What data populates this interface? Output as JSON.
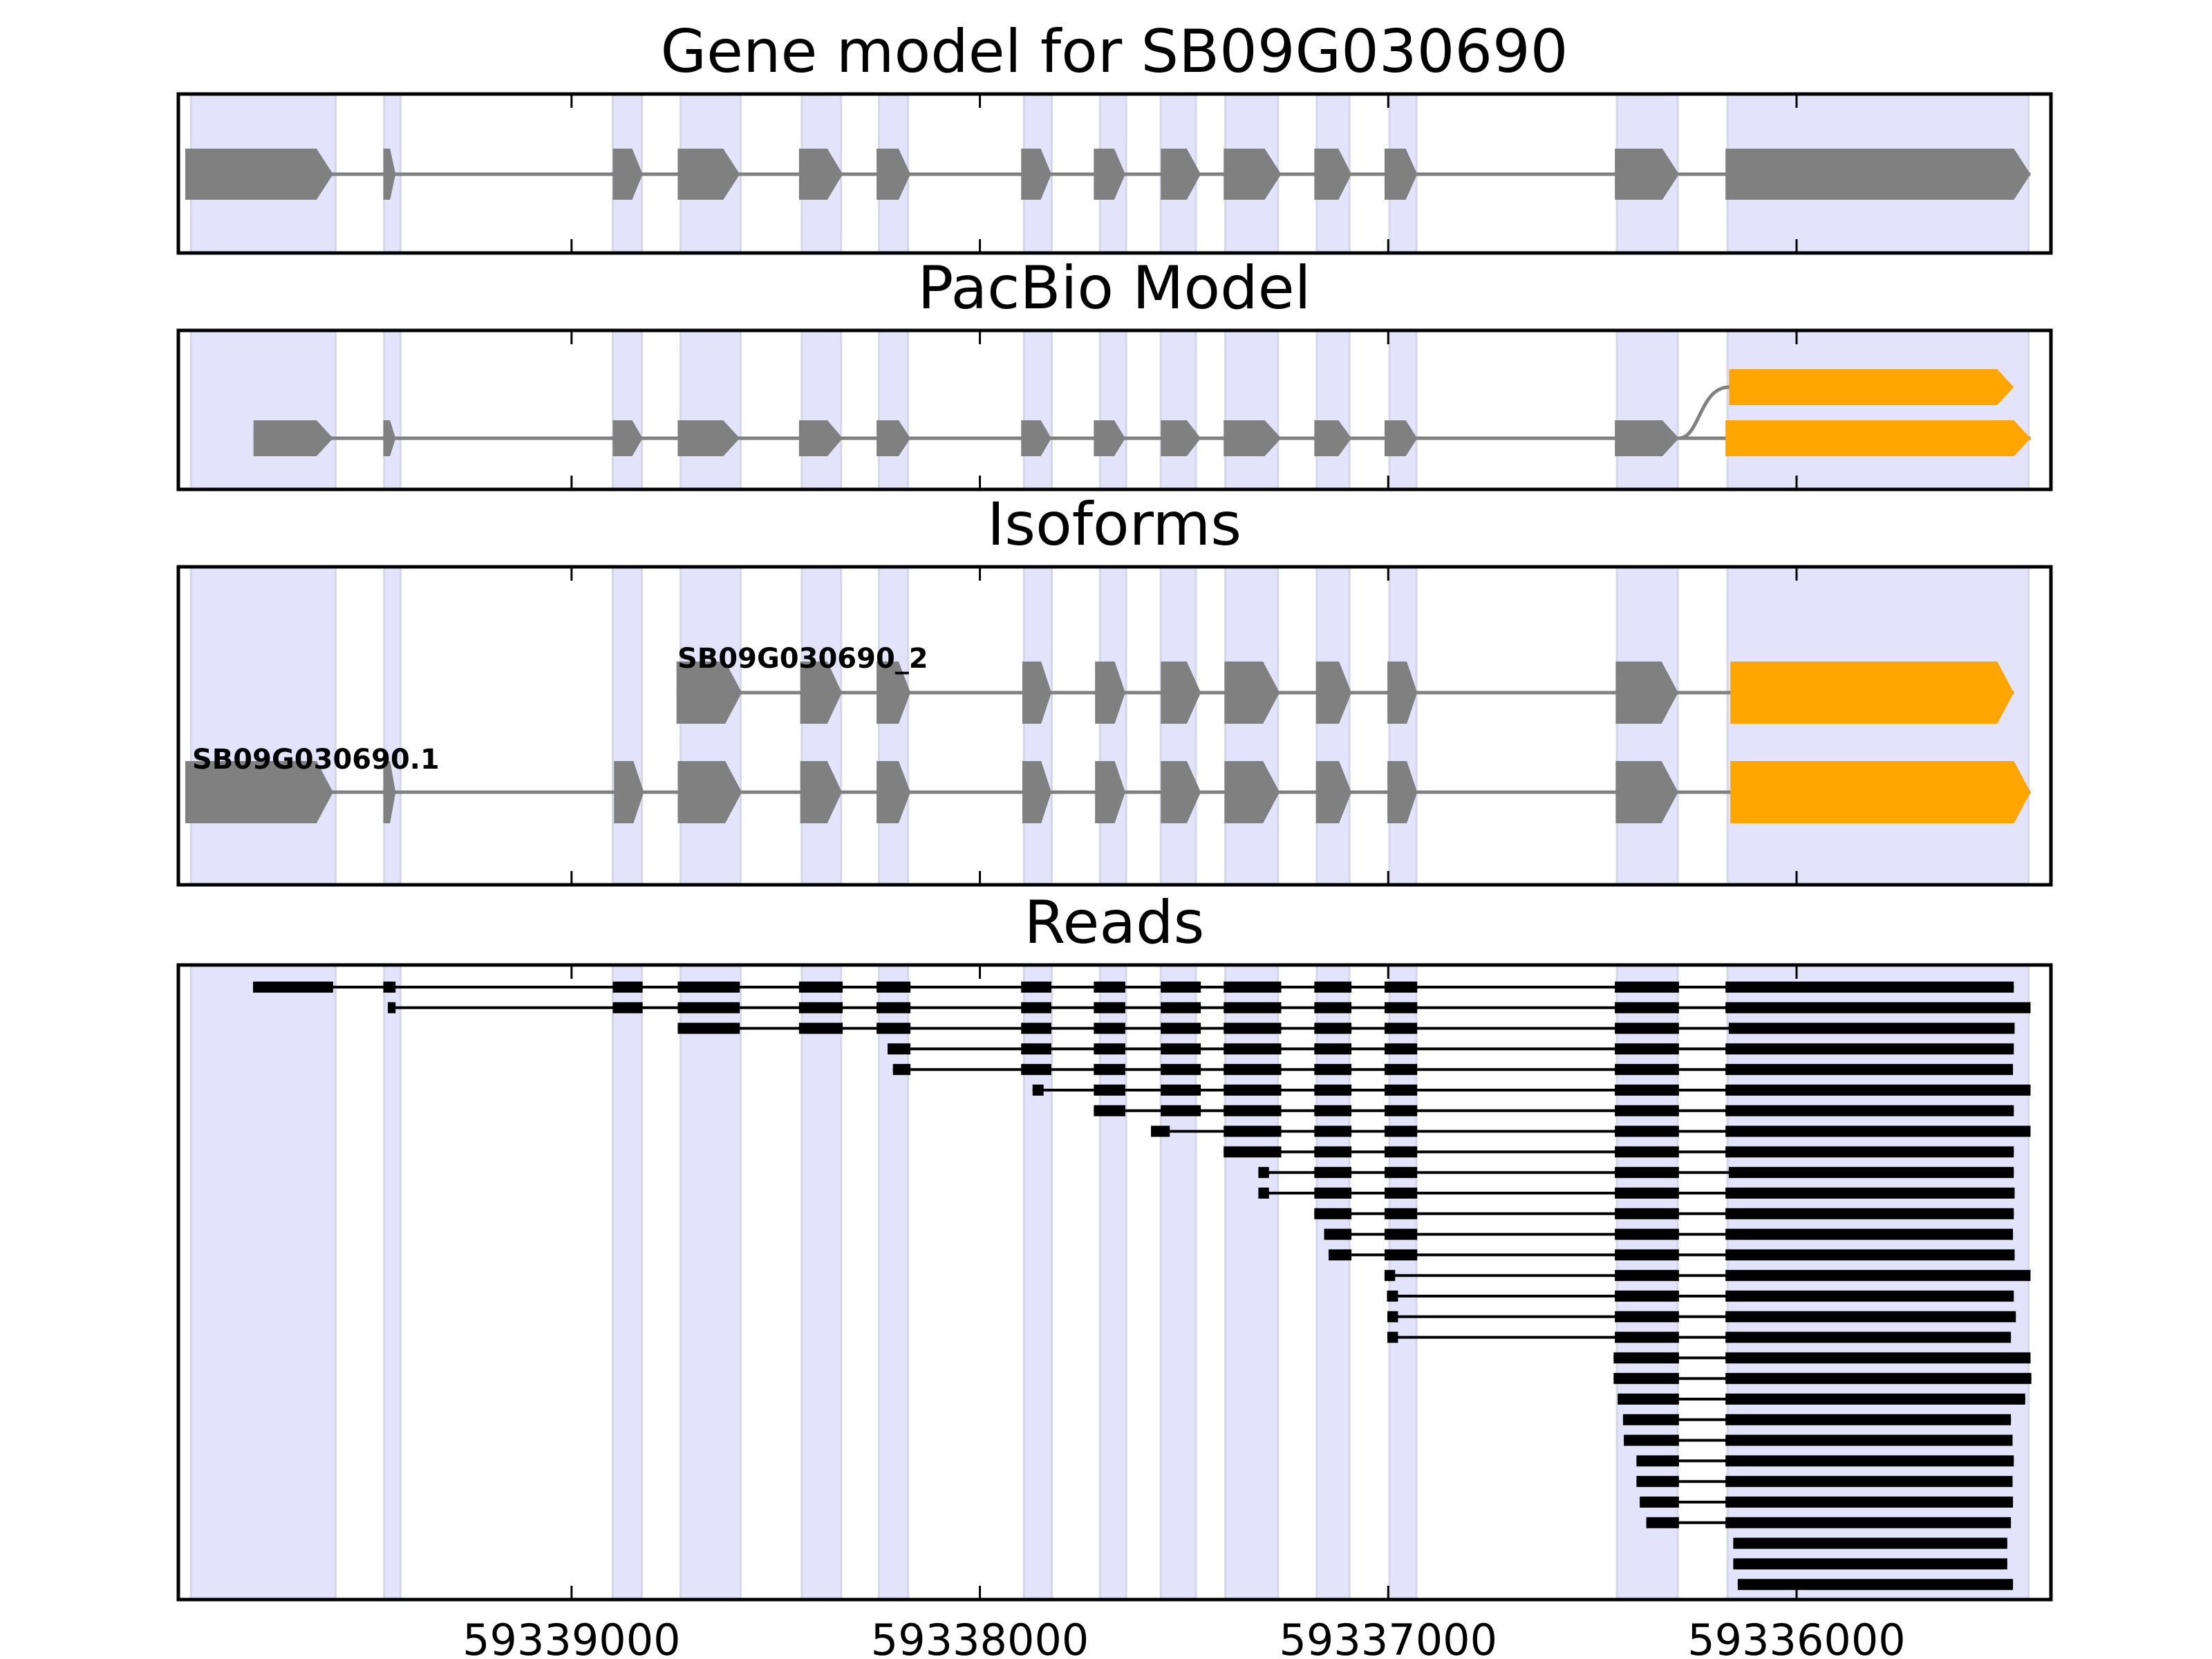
{
  "chart_data": {
    "type": "gene-track",
    "gene_id": "SB09G030690",
    "strand": "-",
    "xlim": [
      59339963,
      59335377
    ],
    "x_ticks": [
      59339000,
      59338000,
      59337000,
      59336000
    ],
    "x_tick_labels": [
      "59339000",
      "59338000",
      "59337000",
      "59336000"
    ],
    "colors": {
      "exon_band": "#e3e3fb",
      "exon_band_edge": "#d6d6ea",
      "gene_exon": "#808080",
      "utr_exon": "#ffa500",
      "intron": "#808080",
      "read": "#000000",
      "frame": "#000000"
    },
    "exon_bands": [
      [
        59339932,
        59339578
      ],
      [
        59339459,
        59339419
      ],
      [
        59338899,
        59338828
      ],
      [
        59338733,
        59338586
      ],
      [
        59338436,
        59338340
      ],
      [
        59338247,
        59338176
      ],
      [
        59337892,
        59337824
      ],
      [
        59337706,
        59337642
      ],
      [
        59337557,
        59337471
      ],
      [
        59337399,
        59337270
      ],
      [
        59337175,
        59337095
      ],
      [
        59336997,
        59336931
      ],
      [
        59336440,
        59336291
      ],
      [
        59336169,
        59335432
      ]
    ],
    "panels": [
      {
        "title": "Gene model for SB09G030690",
        "tracks": [
          {
            "label": "",
            "exons": [
              [
                59339946,
                59339584,
                "cds"
              ],
              [
                59339461,
                59339431,
                "cds"
              ],
              [
                59338899,
                59338826,
                "cds"
              ],
              [
                59338740,
                59338588,
                "cds"
              ],
              [
                59338443,
                59338336,
                "cds"
              ],
              [
                59338253,
                59338170,
                "cds"
              ],
              [
                59337899,
                59337825,
                "cds"
              ],
              [
                59337721,
                59337644,
                "cds"
              ],
              [
                59337557,
                59337459,
                "cds"
              ],
              [
                59337403,
                59337262,
                "cds"
              ],
              [
                59337181,
                59337090,
                "cds"
              ],
              [
                59337009,
                59336929,
                "cds"
              ],
              [
                59336445,
                59336288,
                "cds"
              ],
              [
                59336174,
                59335427,
                "cds"
              ]
            ]
          }
        ]
      },
      {
        "title": "PacBio Model",
        "tracks": [
          {
            "label": "",
            "exons": [
              [
                59339779,
                59339584,
                "cds"
              ],
              [
                59339461,
                59339431,
                "cds"
              ],
              [
                59338899,
                59338826,
                "cds"
              ],
              [
                59338740,
                59338588,
                "cds"
              ],
              [
                59338443,
                59338336,
                "cds"
              ],
              [
                59338253,
                59338170,
                "cds"
              ],
              [
                59337899,
                59337825,
                "cds"
              ],
              [
                59337721,
                59337644,
                "cds"
              ],
              [
                59337557,
                59337459,
                "cds"
              ],
              [
                59337403,
                59337262,
                "cds"
              ],
              [
                59337181,
                59337090,
                "cds"
              ],
              [
                59337009,
                59336929,
                "cds"
              ],
              [
                59336445,
                59336288,
                "cds"
              ],
              [
                59336174,
                59335427,
                "utr"
              ]
            ]
          },
          {
            "label": "",
            "branch_from": 59336288,
            "exons": [
              [
                59336165,
                59335468,
                "utr"
              ]
            ]
          }
        ]
      },
      {
        "title": "Isoforms",
        "tracks": [
          {
            "label": "SB09G030690_2",
            "exons": [
              [
                59338743,
                59338583,
                "cds"
              ],
              [
                59338440,
                59338338,
                "cds"
              ],
              [
                59338253,
                59338170,
                "cds"
              ],
              [
                59337896,
                59337825,
                "cds"
              ],
              [
                59337718,
                59337644,
                "cds"
              ],
              [
                59337557,
                59337459,
                "cds"
              ],
              [
                59337401,
                59337266,
                "cds"
              ],
              [
                59337177,
                59337090,
                "cds"
              ],
              [
                59337002,
                59336929,
                "cds"
              ],
              [
                59336443,
                59336290,
                "cds"
              ],
              [
                59336162,
                59335468,
                "utr"
              ]
            ]
          },
          {
            "label": "SB09G030690.1",
            "exons": [
              [
                59339946,
                59339584,
                "cds"
              ],
              [
                59339461,
                59339431,
                "cds"
              ],
              [
                59338896,
                59338823,
                "cds"
              ],
              [
                59338740,
                59338583,
                "cds"
              ],
              [
                59338440,
                59338338,
                "cds"
              ],
              [
                59338253,
                59338170,
                "cds"
              ],
              [
                59337896,
                59337825,
                "cds"
              ],
              [
                59337718,
                59337644,
                "cds"
              ],
              [
                59337557,
                59337459,
                "cds"
              ],
              [
                59337401,
                59337266,
                "cds"
              ],
              [
                59337177,
                59337090,
                "cds"
              ],
              [
                59337002,
                59336929,
                "cds"
              ],
              [
                59336443,
                59336290,
                "cds"
              ],
              [
                59336162,
                59335427,
                "utr"
              ]
            ]
          }
        ]
      }
    ],
    "reads_panel": {
      "title": "Reads",
      "reads": [
        [
          [
            59339780,
            59339584
          ],
          [
            59339461,
            59339431
          ],
          [
            59338899,
            59338826
          ],
          [
            59338740,
            59338588
          ],
          [
            59338443,
            59338336
          ],
          [
            59338253,
            59338170
          ],
          [
            59337899,
            59337825
          ],
          [
            59337721,
            59337644
          ],
          [
            59337557,
            59337459
          ],
          [
            59337403,
            59337262
          ],
          [
            59337181,
            59337090
          ],
          [
            59337009,
            59336929
          ],
          [
            59336445,
            59336288
          ],
          [
            59336174,
            59335468
          ]
        ],
        [
          [
            59339450,
            59339431
          ],
          [
            59338899,
            59338826
          ],
          [
            59338740,
            59338588
          ],
          [
            59338443,
            59338336
          ],
          [
            59338253,
            59338170
          ],
          [
            59337899,
            59337825
          ],
          [
            59337721,
            59337644
          ],
          [
            59337557,
            59337459
          ],
          [
            59337403,
            59337262
          ],
          [
            59337181,
            59337090
          ],
          [
            59337009,
            59336929
          ],
          [
            59336445,
            59336288
          ],
          [
            59336174,
            59335427
          ]
        ],
        [
          [
            59338740,
            59338588
          ],
          [
            59338443,
            59338336
          ],
          [
            59338253,
            59338170
          ],
          [
            59337899,
            59337825
          ],
          [
            59337721,
            59337644
          ],
          [
            59337557,
            59337459
          ],
          [
            59337403,
            59337262
          ],
          [
            59337181,
            59337090
          ],
          [
            59337009,
            59336929
          ],
          [
            59336445,
            59336288
          ],
          [
            59336166,
            59335466
          ]
        ],
        [
          [
            59338226,
            59338170
          ],
          [
            59337899,
            59337825
          ],
          [
            59337721,
            59337644
          ],
          [
            59337557,
            59337459
          ],
          [
            59337403,
            59337262
          ],
          [
            59337181,
            59337090
          ],
          [
            59337009,
            59336929
          ],
          [
            59336445,
            59336288
          ],
          [
            59336174,
            59335468
          ]
        ],
        [
          [
            59338213,
            59338170
          ],
          [
            59337899,
            59337825
          ],
          [
            59337721,
            59337644
          ],
          [
            59337557,
            59337459
          ],
          [
            59337403,
            59337262
          ],
          [
            59337181,
            59337090
          ],
          [
            59337009,
            59336929
          ],
          [
            59336445,
            59336288
          ],
          [
            59336174,
            59335470
          ]
        ],
        [
          [
            59337871,
            59337844
          ],
          [
            59337721,
            59337644
          ],
          [
            59337557,
            59337459
          ],
          [
            59337403,
            59337262
          ],
          [
            59337181,
            59337090
          ],
          [
            59337009,
            59336929
          ],
          [
            59336445,
            59336288
          ],
          [
            59336174,
            59335427
          ]
        ],
        [
          [
            59337721,
            59337644
          ],
          [
            59337557,
            59337459
          ],
          [
            59337403,
            59337262
          ],
          [
            59337181,
            59337090
          ],
          [
            59337009,
            59336929
          ],
          [
            59336445,
            59336288
          ],
          [
            59336174,
            59335468
          ]
        ],
        [
          [
            59337581,
            59337535
          ],
          [
            59337403,
            59337262
          ],
          [
            59337181,
            59337090
          ],
          [
            59337009,
            59336929
          ],
          [
            59336445,
            59336288
          ],
          [
            59336174,
            59335427
          ]
        ],
        [
          [
            59337403,
            59337262
          ],
          [
            59337181,
            59337090
          ],
          [
            59337009,
            59336929
          ],
          [
            59336445,
            59336288
          ],
          [
            59336174,
            59335468
          ]
        ],
        [
          [
            59337318,
            59337292
          ],
          [
            59337181,
            59337090
          ],
          [
            59337009,
            59336929
          ],
          [
            59336445,
            59336288
          ],
          [
            59336166,
            59335468
          ]
        ],
        [
          [
            59337318,
            59337292
          ],
          [
            59337181,
            59337090
          ],
          [
            59337009,
            59336929
          ],
          [
            59336445,
            59336288
          ],
          [
            59336174,
            59335466
          ]
        ],
        [
          [
            59337181,
            59337090
          ],
          [
            59337009,
            59336929
          ],
          [
            59336445,
            59336288
          ],
          [
            59336174,
            59335468
          ]
        ],
        [
          [
            59337157,
            59337090
          ],
          [
            59337009,
            59336929
          ],
          [
            59336445,
            59336288
          ],
          [
            59336174,
            59335470
          ]
        ],
        [
          [
            59337146,
            59337090
          ],
          [
            59337009,
            59336929
          ],
          [
            59336445,
            59336288
          ],
          [
            59336174,
            59335466
          ]
        ],
        [
          [
            59337009,
            59336983
          ],
          [
            59336445,
            59336288
          ],
          [
            59336174,
            59335427
          ]
        ],
        [
          [
            59337003,
            59336976
          ],
          [
            59336445,
            59336288
          ],
          [
            59336174,
            59335468
          ]
        ],
        [
          [
            59337002,
            59336976
          ],
          [
            59336445,
            59336288
          ],
          [
            59336174,
            59335463
          ]
        ],
        [
          [
            59337002,
            59336976
          ],
          [
            59336445,
            59336288
          ],
          [
            59336174,
            59335475
          ]
        ],
        [
          [
            59336448,
            59336288
          ],
          [
            59336174,
            59335427
          ]
        ],
        [
          [
            59336448,
            59336288
          ],
          [
            59336174,
            59335425
          ]
        ],
        [
          [
            59336438,
            59336288
          ],
          [
            59336174,
            59335440
          ]
        ],
        [
          [
            59336425,
            59336288
          ],
          [
            59336174,
            59335475
          ]
        ],
        [
          [
            59336423,
            59336288
          ],
          [
            59336174,
            59335471
          ]
        ],
        [
          [
            59336392,
            59336288
          ],
          [
            59336174,
            59335468
          ]
        ],
        [
          [
            59336392,
            59336288
          ],
          [
            59336174,
            59335471
          ]
        ],
        [
          [
            59336384,
            59336288
          ],
          [
            59336174,
            59335470
          ]
        ],
        [
          [
            59336368,
            59336288
          ],
          [
            59336174,
            59335475
          ]
        ],
        [
          [
            59336155,
            59335484
          ]
        ],
        [
          [
            59336155,
            59335484
          ]
        ],
        [
          [
            59336144,
            59335470
          ]
        ]
      ]
    }
  }
}
